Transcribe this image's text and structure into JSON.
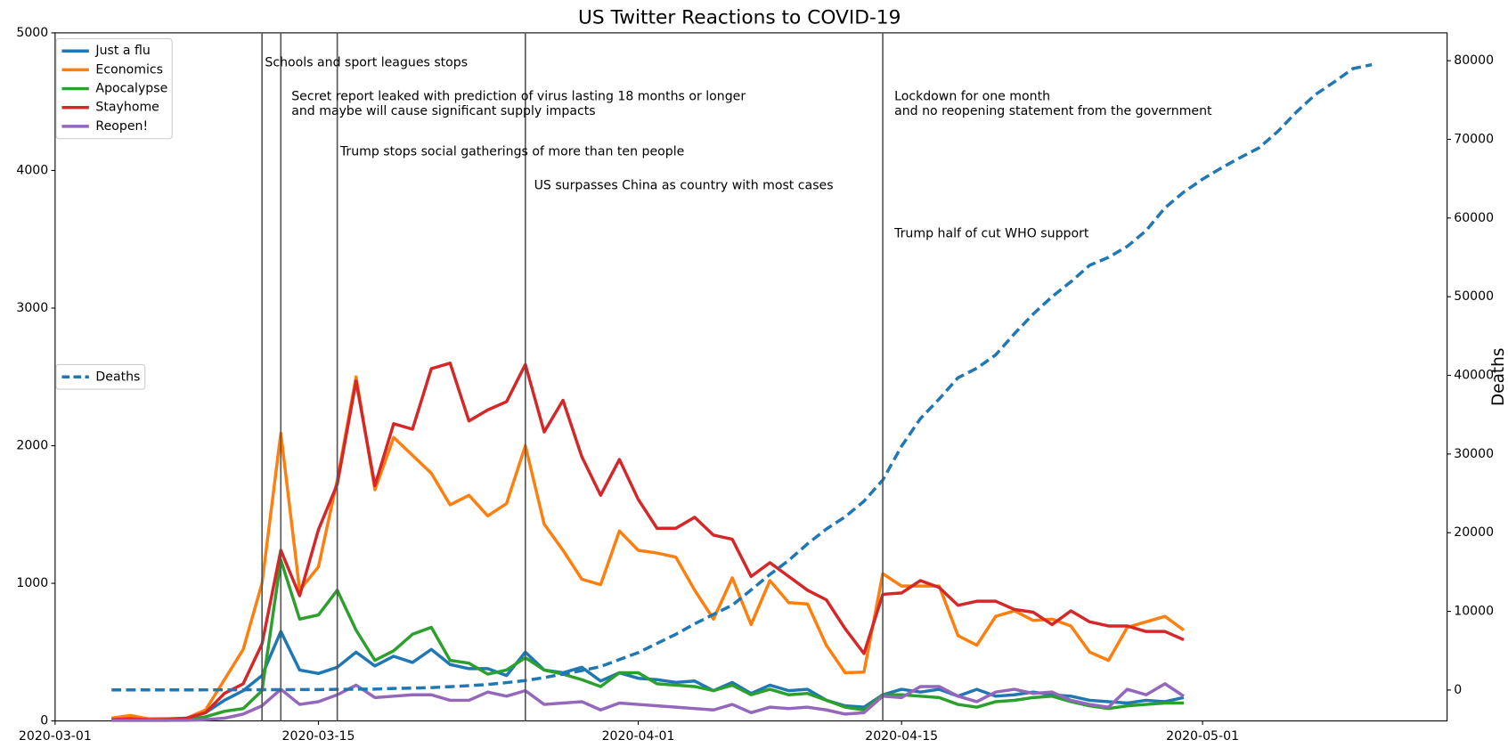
{
  "chart_data": {
    "type": "line",
    "title": "US Twitter Reactions to COVID-19",
    "y2label": "Deaths",
    "x": [
      "2020-03-04",
      "2020-03-05",
      "2020-03-06",
      "2020-03-07",
      "2020-03-08",
      "2020-03-09",
      "2020-03-10",
      "2020-03-11",
      "2020-03-12",
      "2020-03-13",
      "2020-03-14",
      "2020-03-15",
      "2020-03-16",
      "2020-03-17",
      "2020-03-18",
      "2020-03-19",
      "2020-03-20",
      "2020-03-21",
      "2020-03-22",
      "2020-03-23",
      "2020-03-24",
      "2020-03-25",
      "2020-03-26",
      "2020-03-27",
      "2020-03-28",
      "2020-03-29",
      "2020-03-30",
      "2020-03-31",
      "2020-04-01",
      "2020-04-02",
      "2020-04-03",
      "2020-04-04",
      "2020-04-05",
      "2020-04-06",
      "2020-04-07",
      "2020-04-08",
      "2020-04-09",
      "2020-04-10",
      "2020-04-11",
      "2020-04-12",
      "2020-04-13",
      "2020-04-14",
      "2020-04-15",
      "2020-04-16",
      "2020-04-17",
      "2020-04-18",
      "2020-04-19",
      "2020-04-20",
      "2020-04-21",
      "2020-04-22",
      "2020-04-23",
      "2020-04-24",
      "2020-04-25",
      "2020-04-26",
      "2020-04-27",
      "2020-04-28",
      "2020-04-29",
      "2020-04-30"
    ],
    "series": [
      {
        "name": "Just a flu",
        "color": "#1f77b4",
        "values": [
          15,
          20,
          15,
          15,
          20,
          60,
          150,
          220,
          330,
          650,
          370,
          345,
          390,
          500,
          400,
          470,
          425,
          520,
          410,
          380,
          380,
          330,
          500,
          370,
          350,
          390,
          290,
          350,
          310,
          300,
          280,
          290,
          220,
          280,
          200,
          260,
          220,
          230,
          150,
          110,
          100,
          190,
          230,
          210,
          230,
          180,
          230,
          180,
          190,
          210,
          190,
          180,
          150,
          140,
          130,
          150,
          140,
          170
        ]
      },
      {
        "name": "Economics",
        "color": "#ff7f0e",
        "values": [
          20,
          40,
          15,
          10,
          20,
          80,
          300,
          520,
          1000,
          2090,
          950,
          1120,
          1750,
          2500,
          1680,
          2060,
          1930,
          1800,
          1570,
          1640,
          1490,
          1580,
          2000,
          1430,
          1240,
          1030,
          990,
          1380,
          1240,
          1220,
          1190,
          950,
          740,
          1040,
          700,
          1020,
          860,
          850,
          550,
          350,
          355,
          1070,
          980,
          980,
          980,
          620,
          550,
          760,
          800,
          730,
          740,
          690,
          500,
          440,
          680,
          720,
          760,
          660
        ]
      },
      {
        "name": "Apocalypse",
        "color": "#2ca02c",
        "values": [
          5,
          5,
          5,
          5,
          10,
          30,
          70,
          90,
          220,
          1170,
          740,
          770,
          950,
          660,
          440,
          510,
          630,
          680,
          440,
          420,
          340,
          370,
          460,
          370,
          340,
          300,
          250,
          350,
          350,
          270,
          260,
          250,
          220,
          260,
          190,
          230,
          190,
          200,
          150,
          100,
          80,
          190,
          190,
          180,
          170,
          120,
          100,
          140,
          150,
          170,
          180,
          140,
          110,
          90,
          110,
          120,
          130,
          130
        ]
      },
      {
        "name": "Stayhome",
        "color": "#d62728",
        "values": [
          10,
          15,
          10,
          10,
          20,
          60,
          200,
          270,
          560,
          1240,
          910,
          1390,
          1720,
          2470,
          1710,
          2160,
          2120,
          2560,
          2600,
          2180,
          2260,
          2320,
          2590,
          2100,
          2330,
          1920,
          1640,
          1900,
          1610,
          1400,
          1400,
          1480,
          1350,
          1320,
          1050,
          1150,
          1050,
          950,
          880,
          670,
          490,
          920,
          930,
          1020,
          970,
          840,
          870,
          870,
          810,
          790,
          700,
          800,
          720,
          690,
          690,
          650,
          650,
          590
        ]
      },
      {
        "name": "Reopen!",
        "color": "#9467bd",
        "values": [
          5,
          5,
          5,
          5,
          5,
          10,
          20,
          50,
          110,
          230,
          120,
          140,
          190,
          260,
          170,
          180,
          190,
          190,
          150,
          150,
          210,
          180,
          220,
          120,
          130,
          140,
          80,
          130,
          120,
          110,
          100,
          90,
          80,
          120,
          60,
          100,
          90,
          100,
          80,
          50,
          60,
          180,
          170,
          250,
          250,
          180,
          140,
          210,
          230,
          200,
          210,
          150,
          120,
          100,
          230,
          190,
          270,
          180
        ]
      },
      {
        "name": "Deaths",
        "color": "#1f77b4",
        "axis": "y2",
        "dashed": true,
        "x": [
          "2020-03-04",
          "2020-03-05",
          "2020-03-06",
          "2020-03-07",
          "2020-03-08",
          "2020-03-09",
          "2020-03-10",
          "2020-03-11",
          "2020-03-12",
          "2020-03-13",
          "2020-03-14",
          "2020-03-15",
          "2020-03-16",
          "2020-03-17",
          "2020-03-18",
          "2020-03-19",
          "2020-03-20",
          "2020-03-21",
          "2020-03-22",
          "2020-03-23",
          "2020-03-24",
          "2020-03-25",
          "2020-03-26",
          "2020-03-27",
          "2020-03-28",
          "2020-03-29",
          "2020-03-30",
          "2020-03-31",
          "2020-04-01",
          "2020-04-02",
          "2020-04-03",
          "2020-04-04",
          "2020-04-05",
          "2020-04-06",
          "2020-04-07",
          "2020-04-08",
          "2020-04-09",
          "2020-04-10",
          "2020-04-11",
          "2020-04-12",
          "2020-04-13",
          "2020-04-14",
          "2020-04-15",
          "2020-04-16",
          "2020-04-17",
          "2020-04-18",
          "2020-04-19",
          "2020-04-20",
          "2020-04-21",
          "2020-04-22",
          "2020-04-23",
          "2020-04-24",
          "2020-04-25",
          "2020-04-26",
          "2020-04-27",
          "2020-04-28",
          "2020-04-29",
          "2020-04-30",
          "2020-05-01",
          "2020-05-02",
          "2020-05-03",
          "2020-05-04",
          "2020-05-05",
          "2020-05-06",
          "2020-05-07",
          "2020-05-08",
          "2020-05-09",
          "2020-05-10"
        ],
        "values": [
          11,
          12,
          14,
          17,
          21,
          22,
          28,
          36,
          40,
          47,
          54,
          63,
          85,
          108,
          118,
          200,
          244,
          307,
          427,
          552,
          706,
          942,
          1209,
          1581,
          2026,
          2467,
          2978,
          3873,
          4757,
          5926,
          7087,
          8407,
          9619,
          10783,
          12722,
          14695,
          16478,
          18586,
          20463,
          22020,
          24000,
          26700,
          31000,
          34500,
          37000,
          39700,
          40900,
          42600,
          45300,
          47800,
          50000,
          51900,
          54000,
          55000,
          56400,
          58400,
          61300,
          63300,
          64943,
          66369,
          67682,
          68922,
          71000,
          73500,
          75700,
          77300,
          79000,
          79500
        ]
      }
    ],
    "xlim": [
      "2020-03-01",
      "2020-05-14"
    ],
    "xticks": [
      "2020-03-01",
      "2020-03-15",
      "2020-04-01",
      "2020-04-15",
      "2020-05-01"
    ],
    "ylim": [
      0,
      5000
    ],
    "yticks": [
      0,
      1000,
      2000,
      3000,
      4000,
      5000
    ],
    "y2lim": [
      -3930,
      83540
    ],
    "y2ticks": [
      0,
      10000,
      20000,
      30000,
      40000,
      50000,
      60000,
      70000,
      80000
    ],
    "legend": "upper left",
    "y2legend": "center left",
    "events": [
      "2020-03-12",
      "2020-03-13",
      "2020-03-16",
      "2020-03-26",
      "2020-04-14"
    ],
    "event_color": "#555555",
    "annotations": [
      {
        "date": "2020-03-12",
        "text": "Schools and sport leagues stops"
      },
      {
        "date": "2020-03-13",
        "text": "Secret report leaked with prediction of virus lasting 18 months or longer\nand maybe will cause significant supply impacts"
      },
      {
        "date": "2020-03-16",
        "text": "Trump stops social gatherings of more than ten people"
      },
      {
        "date": "2020-03-26",
        "text": "US surpasses China as country with most cases"
      },
      {
        "date": "2020-04-14",
        "text": "Lockdown for one month\nand no reopening statement from the government"
      },
      {
        "date": "2020-04-14",
        "text": "Trump half of cut WHO support"
      }
    ]
  }
}
